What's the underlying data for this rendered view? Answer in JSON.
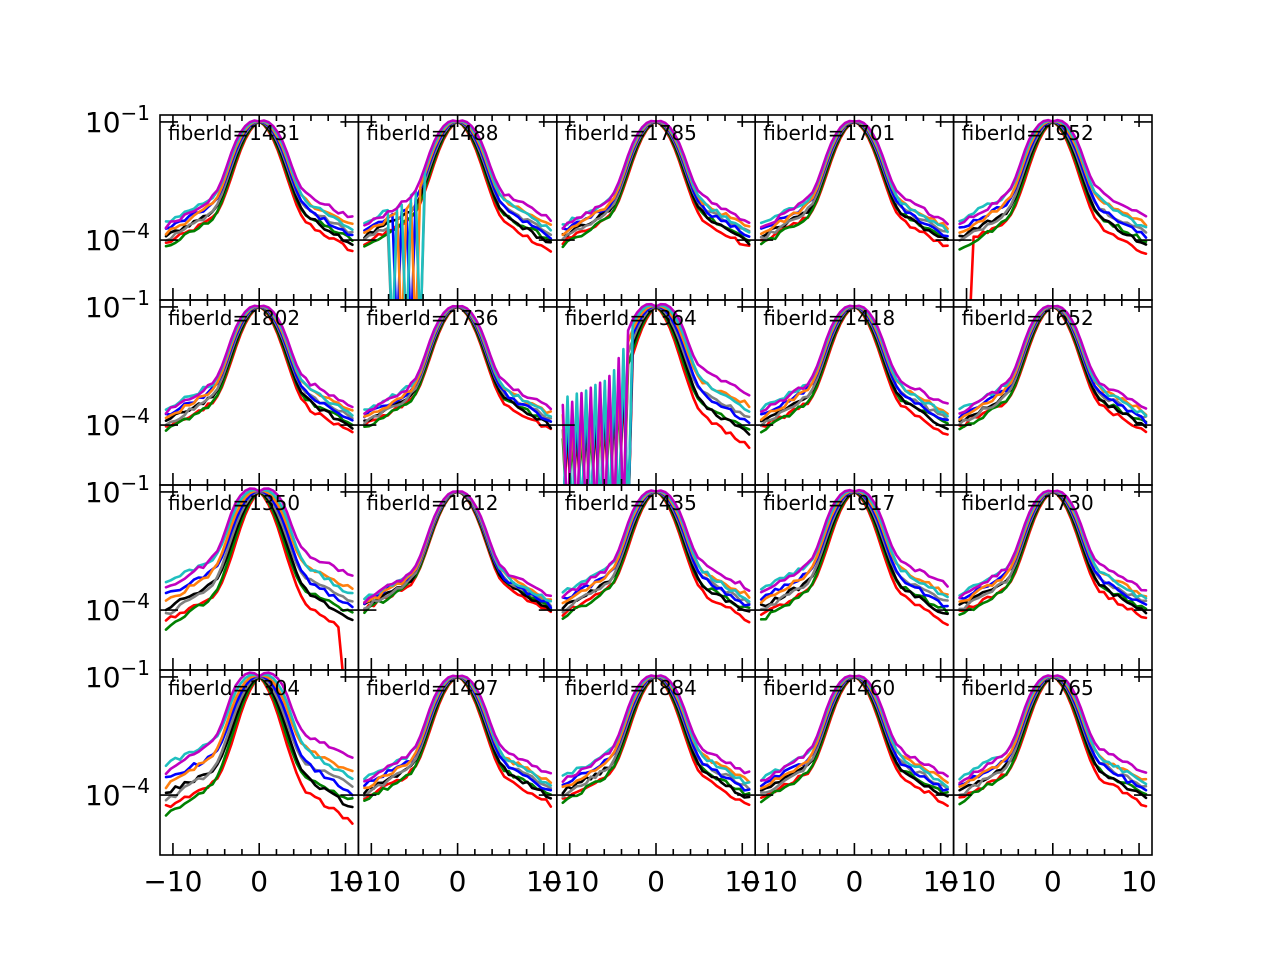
{
  "chart_data": {
    "type": "line",
    "layout": "grid of small multiples, 4 rows x 5 columns, shared axes",
    "xlabel": "",
    "ylabel": "",
    "xlim": [
      -11.5,
      11.5
    ],
    "ylim": [
      3e-06,
      0.15
    ],
    "yscale": "log",
    "x_ticks": [
      -10,
      0,
      10
    ],
    "x_tick_labels": [
      "−10",
      "0",
      "10"
    ],
    "y_ticks": [
      0.1,
      0.0001
    ],
    "y_tick_labels_base": "10",
    "y_tick_labels_exp": [
      "−1",
      "−4"
    ],
    "series": [
      {
        "name": "r",
        "color": "#ff0000"
      },
      {
        "name": "g",
        "color": "#008000"
      },
      {
        "name": "k",
        "color": "#000000"
      },
      {
        "name": "gray",
        "color": "#808080"
      },
      {
        "name": "b",
        "color": "#0000ff"
      },
      {
        "name": "orange",
        "color": "#ff7f0e"
      },
      {
        "name": "c",
        "color": "#1fbfbf"
      },
      {
        "name": "m",
        "color": "#c000c0"
      }
    ],
    "profile_note": "each curve approximates a normalized PSF profile: peak ~0.1 at x=0, ~1e-4 wings at |x|~10",
    "panels": [
      {
        "label": "fiberId=1431",
        "wing_spread": 1.0,
        "dropout": "none"
      },
      {
        "label": "fiberId=1488",
        "wing_spread": 1.0,
        "dropout": "left-multi"
      },
      {
        "label": "fiberId=1785",
        "wing_spread": 0.8,
        "dropout": "none"
      },
      {
        "label": "fiberId=1701",
        "wing_spread": 0.8,
        "dropout": "none"
      },
      {
        "label": "fiberId=1952",
        "wing_spread": 1.2,
        "dropout": "left-single"
      },
      {
        "label": "fiberId=1802",
        "wing_spread": 0.9,
        "dropout": "none"
      },
      {
        "label": "fiberId=1736",
        "wing_spread": 0.7,
        "dropout": "none"
      },
      {
        "label": "fiberId=1364",
        "wing_spread": 1.6,
        "dropout": "left-heavy"
      },
      {
        "label": "fiberId=1418",
        "wing_spread": 0.9,
        "dropout": "none"
      },
      {
        "label": "fiberId=1652",
        "wing_spread": 0.8,
        "dropout": "none"
      },
      {
        "label": "fiberId=1350",
        "wing_spread": 1.8,
        "dropout": "right-tail"
      },
      {
        "label": "fiberId=1612",
        "wing_spread": 0.5,
        "dropout": "none"
      },
      {
        "label": "fiberId=1435",
        "wing_spread": 1.0,
        "dropout": "none"
      },
      {
        "label": "fiberId=1917",
        "wing_spread": 1.2,
        "dropout": "none"
      },
      {
        "label": "fiberId=1730",
        "wing_spread": 0.9,
        "dropout": "none"
      },
      {
        "label": "fiberId=1304",
        "wing_spread": 2.0,
        "dropout": "none"
      },
      {
        "label": "fiberId=1497",
        "wing_spread": 0.9,
        "dropout": "none"
      },
      {
        "label": "fiberId=1884",
        "wing_spread": 1.0,
        "dropout": "none"
      },
      {
        "label": "fiberId=1460",
        "wing_spread": 0.9,
        "dropout": "none"
      },
      {
        "label": "fiberId=1765",
        "wing_spread": 1.0,
        "dropout": "none"
      }
    ]
  }
}
